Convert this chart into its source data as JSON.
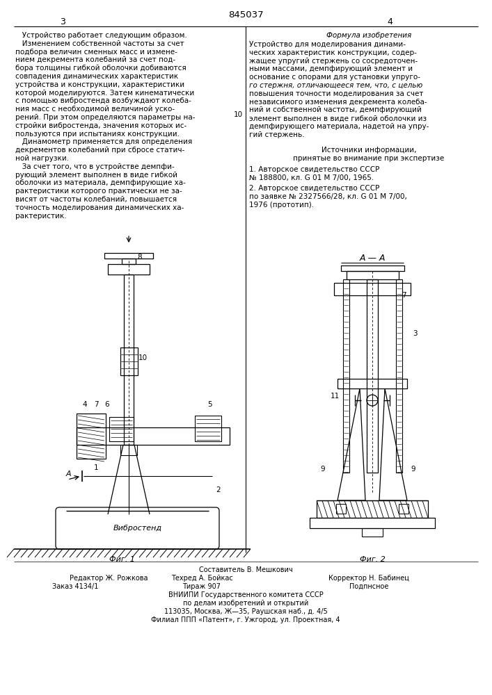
{
  "patent_number": "845037",
  "page_left": "3",
  "page_right": "4",
  "bg_color": "#ffffff",
  "text_color": "#000000",
  "left_col_lines": [
    "   Устройство работает следующим образом.",
    "   Изменением собственной частоты за счет",
    "подбора величин сменных масс и измене-",
    "нием декремента колебаний за счет под-",
    "бора толщины гибкой оболочки добиваются",
    "совпадения динамических характеристик",
    "устройства и конструкции, характеристики",
    "которой моделируются. Затем кинематически",
    "с помощью вибростенда возбуждают колеба-",
    "ния масс с необходимой величиной уско-",
    "рений. При этом определяются параметры на-",
    "стройки вибростенда, значения которых ис-",
    "пользуются при испытаниях конструкции.",
    "   Динамометр применяется для определения",
    "декрементов колебаний при сбросе статич-",
    "ной нагрузки.",
    "   За счет того, что в устройстве демпфи-",
    "рующий элемент выполнен в виде гибкой",
    "оболочки из материала, демпфирующие ха-",
    "рактеристики которого практически не за-",
    "висят от частоты колебаний, повышается",
    "точность моделирования динамических ха-",
    "рактеристик."
  ],
  "right_formula_header": "Формула изобретения",
  "right_col_lines": [
    [
      "Устройство для моделирования динами-",
      "normal"
    ],
    [
      "ческих характеристик конструкции, содер-",
      "normal"
    ],
    [
      "жащее упругий стержень со сосредоточен-",
      "normal"
    ],
    [
      "ными массами, демпфирующий элемент и",
      "normal"
    ],
    [
      "основание с опорами для установки упруго-",
      "normal"
    ],
    [
      "го стержня, отличающееся тем, что, с целью",
      "italic"
    ],
    [
      "повышения точности моделирования за счет",
      "normal"
    ],
    [
      "независимого изменения декремента колеба-",
      "normal"
    ],
    [
      "ний и собственной частоты, демпфирующий",
      "normal"
    ],
    [
      "элемент выполнен в виде гибкой оболочки из",
      "normal"
    ],
    [
      "демпфирующего материала, надетой на упру-",
      "normal"
    ],
    [
      "гий стержень.",
      "normal"
    ]
  ],
  "sources_hdr1": "Источники информации,",
  "sources_hdr2": "принятые во внимание при экспертизе",
  "src1_l1": "1. Авторское свидетельство СССР",
  "src1_l2": "№ 188800, кл. G 01 M 7/00, 1965.",
  "src2_l1": "2. Авторское свидетельство СССР",
  "src2_l2": "по заявке № 2327566/28, кл. G 01 M 7/00,",
  "src2_l3": "1976 (прототип).",
  "vibrostend": "Вибростенд",
  "fig1_lbl": "Фиг. 1",
  "fig2_lbl": "Фиг. 2",
  "AA_label": "A — A",
  "footer_comp": "Составитель В. Мешкович",
  "footer_ed": "Редактор Ж. Рожкова",
  "footer_tech": "Техред А. Бойкас",
  "footer_corr": "Корректор Н. Бабинец",
  "footer_order": "Заказ 4134/1",
  "footer_circ": "Тираж 907",
  "footer_sub": "Подпнсное",
  "footer_org": "ВНИИПИ Государственного комитета СССР",
  "footer_dept": "по делам изобретений и открытий",
  "footer_addr1": "113035, Москва, Ж—35, Раушская наб., д. 4/5",
  "footer_addr2": "Филиал ППП «Патент», г. Ужгород, ул. Проектная, 4"
}
